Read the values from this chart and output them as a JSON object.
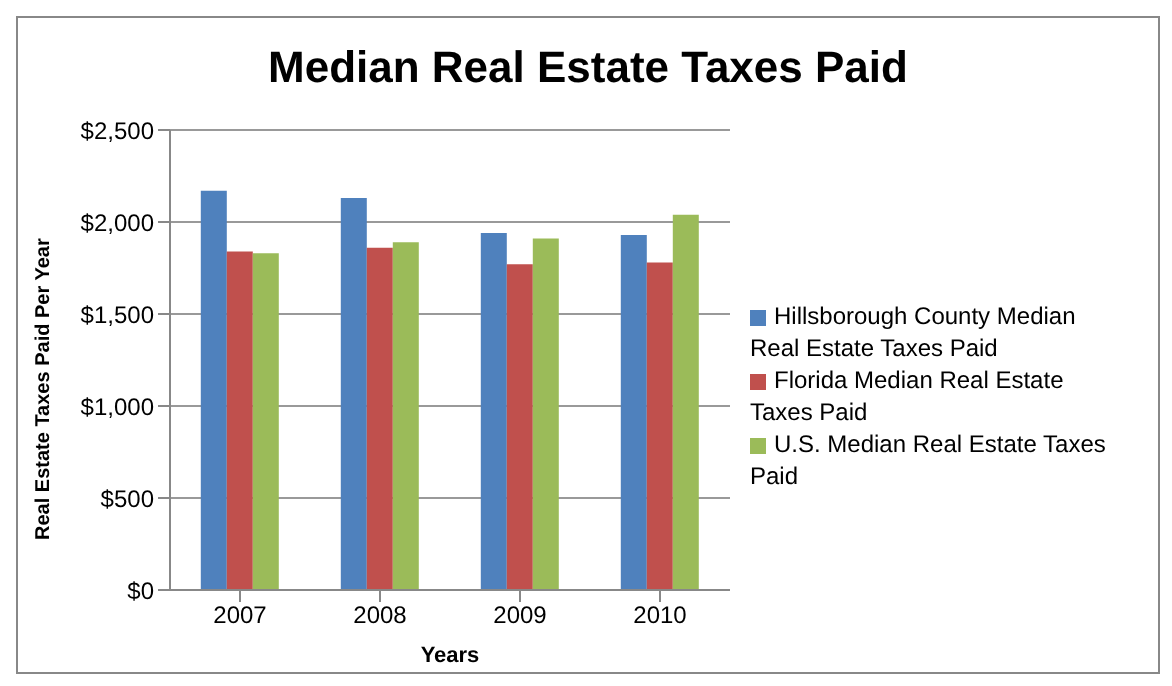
{
  "chart_data": {
    "type": "bar",
    "title": "Median Real Estate Taxes Paid",
    "xlabel": "Years",
    "ylabel": "Real Estate Taxes Paid Per Year",
    "categories": [
      "2007",
      "2008",
      "2009",
      "2010"
    ],
    "series": [
      {
        "name": "Hillsborough County Median Real Estate Taxes Paid",
        "color": "#4f81bd",
        "values": [
          2170,
          2130,
          1940,
          1930
        ]
      },
      {
        "name": "Florida Median Real Estate Taxes Paid",
        "color": "#c0504d",
        "values": [
          1840,
          1860,
          1770,
          1780
        ]
      },
      {
        "name": "U.S. Median Real Estate Taxes Paid",
        "color": "#9bbb59",
        "values": [
          1830,
          1890,
          1910,
          2040
        ]
      }
    ],
    "ylim": [
      0,
      2500
    ],
    "yticks": [
      {
        "value": 0,
        "label": "$0"
      },
      {
        "value": 500,
        "label": "$500"
      },
      {
        "value": 1000,
        "label": "$1,000"
      },
      {
        "value": 1500,
        "label": "$1,500"
      },
      {
        "value": 2000,
        "label": "$2,000"
      },
      {
        "value": 2500,
        "label": "$2,500"
      }
    ],
    "grid": "y",
    "legend": "right"
  }
}
